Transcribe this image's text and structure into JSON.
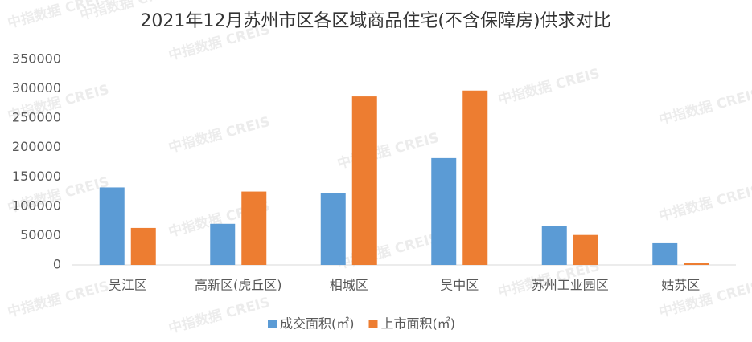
{
  "chart_data": {
    "type": "bar",
    "title": "2021年12月苏州市区各区域商品住宅(不含保障房)供求对比",
    "watermark": "中指数据 CREIS",
    "categories": [
      "吴江区",
      "高新区(虎丘区)",
      "相城区",
      "吴中区",
      "苏州工业园区",
      "姑苏区"
    ],
    "series": [
      {
        "name": "成交面积(㎡)",
        "color": "#5b9bd5",
        "values": [
          132000,
          70000,
          123000,
          182000,
          66000,
          37000
        ]
      },
      {
        "name": "上市面积(㎡)",
        "color": "#ed7d31",
        "values": [
          63000,
          125000,
          287000,
          297000,
          51000,
          4000
        ]
      }
    ],
    "ylim": [
      0,
      350000
    ],
    "yticks": [
      0,
      50000,
      100000,
      150000,
      200000,
      250000,
      300000,
      350000
    ],
    "grid": false,
    "legend": "bottom"
  }
}
